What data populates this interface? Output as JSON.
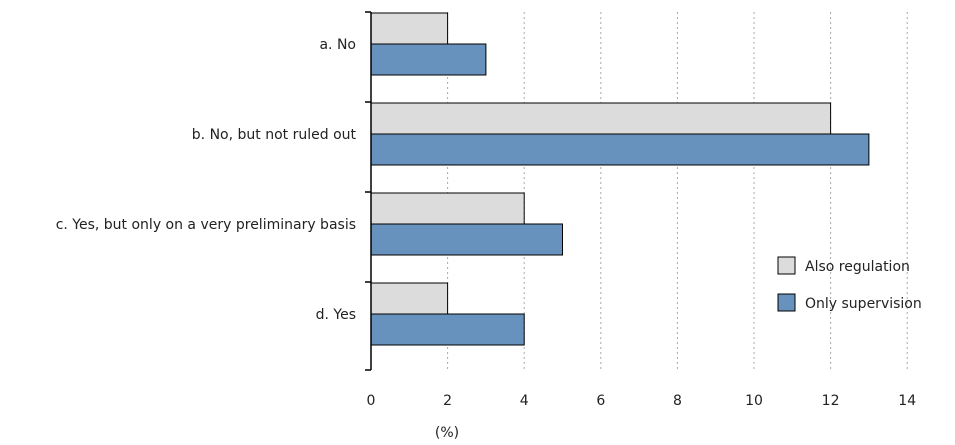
{
  "chart_data": {
    "type": "bar",
    "orientation": "horizontal",
    "categories": [
      "a. No",
      "b. No, but not ruled out",
      "c. Yes, but only on a very preliminary basis",
      "d. Yes"
    ],
    "series": [
      {
        "name": "Also regulation",
        "values": [
          2,
          12,
          4,
          2
        ],
        "color": "#dcdcdc"
      },
      {
        "name": "Only supervision",
        "values": [
          3,
          13,
          5,
          4
        ],
        "color": "#6792bd"
      }
    ],
    "xlabel": "(%)",
    "xlim": [
      0,
      14
    ],
    "xticks": [
      0,
      2,
      4,
      6,
      8,
      10,
      12,
      14
    ],
    "grid": "vertical-dotted",
    "legend": "right",
    "bar_edge_color": "#000000"
  }
}
